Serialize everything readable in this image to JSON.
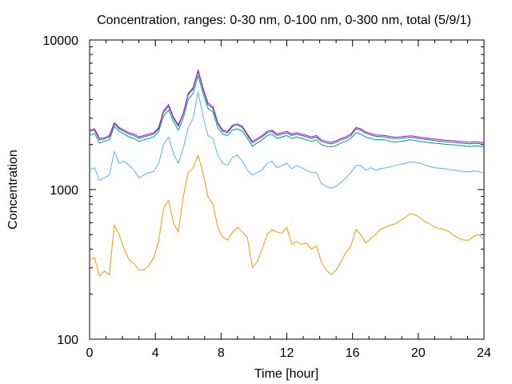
{
  "chart_data": {
    "type": "line",
    "title": "Concentration, ranges: 0-30 nm, 0-100 nm, 0-300 nm, total (5/9/1)",
    "xlabel": "Time [hour]",
    "ylabel": "Concentration",
    "xlim": [
      0,
      24
    ],
    "ylim": [
      100,
      10000
    ],
    "yscale": "log",
    "grid": false,
    "legend": "none",
    "xticks": [
      0,
      4,
      8,
      12,
      16,
      20,
      24
    ],
    "xtick_labels": [
      "0",
      "4",
      "8",
      "12",
      "16",
      "20",
      "24"
    ],
    "yticks": [
      100,
      1000,
      10000
    ],
    "ytick_labels": [
      "100",
      "1000",
      "10000"
    ],
    "x": [
      0,
      0.3,
      0.6,
      0.9,
      1.2,
      1.5,
      1.8,
      2.1,
      2.4,
      2.7,
      3,
      3.3,
      3.6,
      3.9,
      4.2,
      4.5,
      4.8,
      5.1,
      5.4,
      5.7,
      6,
      6.3,
      6.6,
      6.9,
      7.2,
      7.5,
      7.8,
      8.1,
      8.4,
      8.7,
      9,
      9.3,
      9.6,
      9.9,
      10.2,
      10.5,
      10.8,
      11.1,
      11.4,
      11.7,
      12,
      12.3,
      12.6,
      12.9,
      13.2,
      13.5,
      13.8,
      14.1,
      14.4,
      14.7,
      15,
      15.3,
      15.6,
      15.9,
      16.2,
      16.5,
      16.8,
      17.1,
      17.4,
      17.7,
      18,
      18.3,
      18.6,
      18.9,
      19.2,
      19.5,
      19.8,
      20.1,
      20.4,
      20.7,
      21,
      21.3,
      21.6,
      21.9,
      22.2,
      22.5,
      22.8,
      23.1,
      23.4,
      23.7,
      24
    ],
    "series": [
      {
        "color": "#e69f00",
        "values": [
          340,
          350,
          265,
          285,
          270,
          580,
          500,
          400,
          340,
          320,
          290,
          290,
          310,
          350,
          450,
          750,
          850,
          600,
          520,
          900,
          1300,
          1400,
          1700,
          1300,
          900,
          800,
          560,
          480,
          460,
          520,
          560,
          520,
          480,
          300,
          330,
          400,
          500,
          540,
          520,
          510,
          560,
          430,
          450,
          430,
          440,
          400,
          420,
          330,
          290,
          270,
          290,
          330,
          380,
          420,
          540,
          500,
          440,
          470,
          500,
          540,
          560,
          580,
          590,
          620,
          650,
          690,
          680,
          650,
          610,
          590,
          560,
          550,
          540,
          520,
          490,
          470,
          460,
          460,
          490,
          500,
          460
        ]
      },
      {
        "color": "#56b4e9",
        "values": [
          1350,
          1400,
          1150,
          1200,
          1250,
          1800,
          1500,
          1550,
          1450,
          1350,
          1200,
          1250,
          1300,
          1320,
          1500,
          2000,
          2250,
          1750,
          1500,
          1900,
          2600,
          3000,
          4500,
          3100,
          2300,
          2200,
          1700,
          1500,
          1450,
          1650,
          1700,
          1550,
          1350,
          1250,
          1300,
          1350,
          1500,
          1550,
          1400,
          1450,
          1500,
          1380,
          1450,
          1400,
          1350,
          1300,
          1300,
          1100,
          1050,
          1020,
          1050,
          1120,
          1200,
          1300,
          1450,
          1450,
          1350,
          1400,
          1350,
          1380,
          1400,
          1420,
          1450,
          1480,
          1500,
          1530,
          1520,
          1500,
          1460,
          1430,
          1400,
          1390,
          1380,
          1360,
          1350,
          1330,
          1320,
          1310,
          1330,
          1320,
          1290
        ]
      },
      {
        "color": "#009e73",
        "values": [
          2300,
          2380,
          2050,
          2100,
          2150,
          2650,
          2450,
          2350,
          2250,
          2200,
          2100,
          2150,
          2200,
          2250,
          2450,
          3100,
          3400,
          2850,
          2500,
          3000,
          4000,
          4400,
          5800,
          4400,
          3500,
          3300,
          2600,
          2350,
          2300,
          2500,
          2550,
          2450,
          2200,
          1950,
          2050,
          2150,
          2300,
          2350,
          2200,
          2250,
          2300,
          2200,
          2250,
          2200,
          2150,
          2100,
          2150,
          2000,
          1950,
          1930,
          1970,
          2050,
          2100,
          2200,
          2400,
          2350,
          2250,
          2200,
          2150,
          2150,
          2150,
          2100,
          2080,
          2100,
          2120,
          2150,
          2130,
          2100,
          2080,
          2060,
          2040,
          2030,
          2010,
          2000,
          1990,
          1970,
          1960,
          1940,
          1960,
          1950,
          1930
        ]
      },
      {
        "color": "#0072b2",
        "values": [
          2450,
          2500,
          2150,
          2180,
          2250,
          2750,
          2550,
          2450,
          2350,
          2300,
          2200,
          2250,
          2300,
          2350,
          2550,
          3300,
          3600,
          3000,
          2650,
          3200,
          4300,
          4700,
          6200,
          4700,
          3700,
          3500,
          2750,
          2450,
          2400,
          2650,
          2700,
          2600,
          2300,
          2050,
          2150,
          2250,
          2400,
          2450,
          2300,
          2350,
          2400,
          2300,
          2350,
          2300,
          2250,
          2200,
          2250,
          2100,
          2050,
          2020,
          2070,
          2150,
          2200,
          2300,
          2550,
          2500,
          2380,
          2320,
          2270,
          2260,
          2250,
          2210,
          2190,
          2200,
          2220,
          2240,
          2220,
          2190,
          2170,
          2150,
          2130,
          2110,
          2090,
          2080,
          2070,
          2050,
          2040,
          2020,
          2040,
          2030,
          2000
        ]
      },
      {
        "color": "#cc00cc",
        "values": [
          2500,
          2550,
          2200,
          2220,
          2300,
          2800,
          2600,
          2500,
          2400,
          2350,
          2250,
          2300,
          2350,
          2400,
          2600,
          3350,
          3700,
          3050,
          2700,
          3250,
          4400,
          4800,
          6300,
          4800,
          3800,
          3600,
          2800,
          2500,
          2450,
          2700,
          2750,
          2650,
          2350,
          2100,
          2200,
          2300,
          2450,
          2500,
          2350,
          2400,
          2450,
          2350,
          2400,
          2350,
          2300,
          2250,
          2300,
          2150,
          2100,
          2070,
          2120,
          2200,
          2250,
          2350,
          2600,
          2550,
          2430,
          2370,
          2320,
          2310,
          2300,
          2260,
          2240,
          2250,
          2270,
          2290,
          2270,
          2240,
          2220,
          2200,
          2180,
          2160,
          2140,
          2130,
          2120,
          2100,
          2090,
          2070,
          2090,
          2080,
          2050
        ]
      }
    ]
  }
}
